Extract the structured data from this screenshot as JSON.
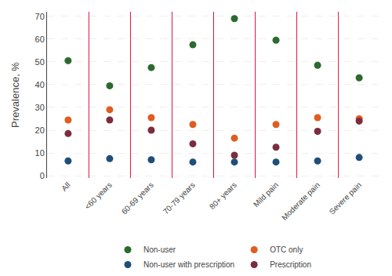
{
  "chart_data": {
    "type": "scatter",
    "categories": [
      "All",
      "<60 years",
      "60-69 years",
      "70-79 years",
      "80+ years",
      "Mild pain",
      "Moderate pain",
      "Severe pain"
    ],
    "series": [
      {
        "name": "Non-user",
        "color": "#2d6a2d",
        "values": [
          50.5,
          39.5,
          47.5,
          57.5,
          69.0,
          59.5,
          48.5,
          43.0
        ]
      },
      {
        "name": "OTC only",
        "color": "#e05c20",
        "values": [
          24.5,
          29.0,
          25.5,
          22.5,
          16.5,
          22.5,
          25.5,
          25.0
        ]
      },
      {
        "name": "Non-user with prescription",
        "color": "#1f4e79",
        "values": [
          6.5,
          7.5,
          7.0,
          6.0,
          6.0,
          6.0,
          6.5,
          8.0
        ]
      },
      {
        "name": "Prescription",
        "color": "#7b2d3e",
        "values": [
          18.5,
          24.5,
          20.0,
          14.0,
          9.0,
          12.5,
          19.5,
          24.0
        ]
      }
    ],
    "ylabel": "Prevalence, %",
    "ylim": [
      -1,
      72
    ],
    "yticks": [
      0,
      10,
      20,
      30,
      40,
      50,
      60,
      70
    ],
    "grid": true,
    "legend": "bottom",
    "marker": "circle"
  }
}
